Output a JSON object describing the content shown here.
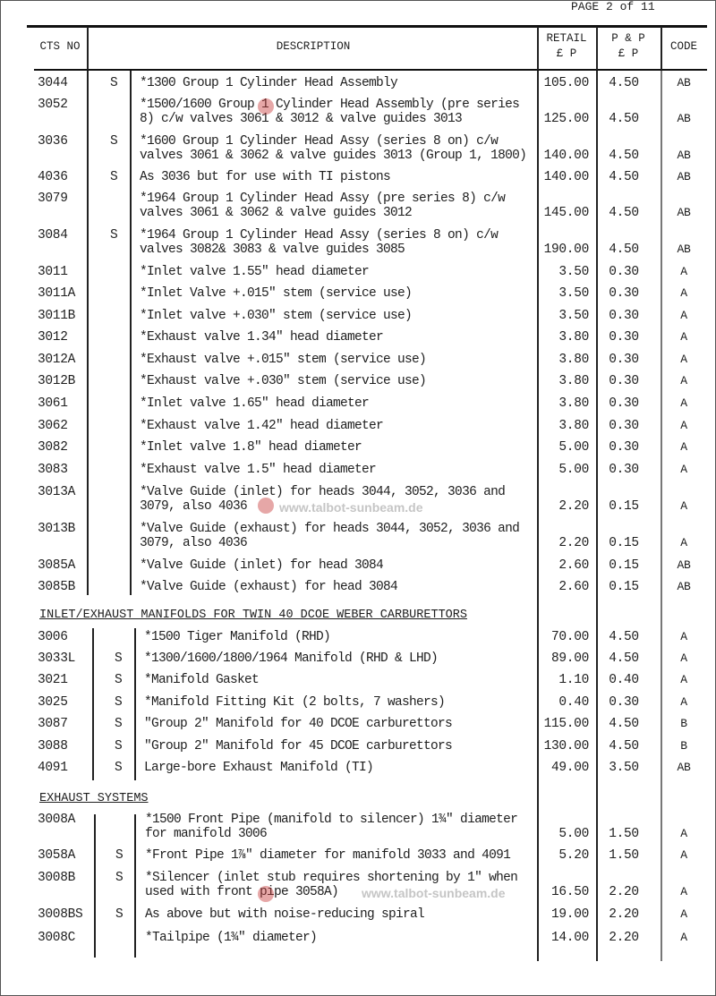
{
  "page_label": "PAGE 2 of 11",
  "header": {
    "cts_no": "CTS NO",
    "description": "DESCRIPTION",
    "retail": [
      "RETAIL",
      "£  P"
    ],
    "pp": [
      "P & P",
      "£ P"
    ],
    "code": "CODE"
  },
  "watermark": "www.talbot-sunbeam.de",
  "sections": [
    {
      "title": "",
      "rows": [
        {
          "cts": "3044",
          "s": "S",
          "desc": [
            "*1300 Group 1 Cylinder Head Assembly"
          ],
          "retail": "105.00",
          "pp": "4.50",
          "code": "AB"
        },
        {
          "cts": "3052",
          "s": "",
          "desc": [
            "*1500/1600 Group 1 Cylinder Head Assembly (pre series",
            "8) c/w valves 3061 & 3012 & valve guides 3013"
          ],
          "retail": "125.00",
          "pp": "4.50",
          "code": "AB"
        },
        {
          "cts": "3036",
          "s": "S",
          "desc": [
            "*1600 Group 1 Cylinder Head Assy (series 8 on) c/w",
            "valves 3061 & 3062 & valve guides 3013 (Group 1, 1800)"
          ],
          "retail": "140.00",
          "pp": "4.50",
          "code": "AB"
        },
        {
          "cts": "4036",
          "s": "S",
          "desc": [
            "As 3036 but for use with TI pistons"
          ],
          "retail": "140.00",
          "pp": "4.50",
          "code": "AB"
        },
        {
          "cts": "3079",
          "s": "",
          "desc": [
            "*1964 Group 1 Cylinder Head Assy (pre series 8) c/w",
            "valves 3061 & 3062 & valve guides 3012"
          ],
          "retail": "145.00",
          "pp": "4.50",
          "code": "AB"
        },
        {
          "cts": "3084",
          "s": "S",
          "desc": [
            "*1964 Group 1 Cylinder Head Assy (series 8 on) c/w",
            "valves 3082& 3083 & valve guides 3085"
          ],
          "retail": "190.00",
          "pp": "4.50",
          "code": "AB"
        },
        {
          "cts": "3011",
          "s": "",
          "desc": [
            "*Inlet valve 1.55\" head diameter"
          ],
          "retail": "3.50",
          "pp": "0.30",
          "code": "A"
        },
        {
          "cts": "3011A",
          "s": "",
          "desc": [
            "*Inlet Valve +.015\" stem (service use)"
          ],
          "retail": "3.50",
          "pp": "0.30",
          "code": "A"
        },
        {
          "cts": "3011B",
          "s": "",
          "desc": [
            "*Inlet valve +.030\" stem (service use)"
          ],
          "retail": "3.50",
          "pp": "0.30",
          "code": "A"
        },
        {
          "cts": "3012",
          "s": "",
          "desc": [
            "*Exhaust valve 1.34\" head diameter"
          ],
          "retail": "3.80",
          "pp": "0.30",
          "code": "A"
        },
        {
          "cts": "3012A",
          "s": "",
          "desc": [
            "*Exhaust valve +.015\" stem (service use)"
          ],
          "retail": "3.80",
          "pp": "0.30",
          "code": "A"
        },
        {
          "cts": "3012B",
          "s": "",
          "desc": [
            "*Exhaust valve +.030\" stem (service use)"
          ],
          "retail": "3.80",
          "pp": "0.30",
          "code": "A"
        },
        {
          "cts": "3061",
          "s": "",
          "desc": [
            "*Inlet valve 1.65\" head diameter"
          ],
          "retail": "3.80",
          "pp": "0.30",
          "code": "A"
        },
        {
          "cts": "3062",
          "s": "",
          "desc": [
            "*Exhaust valve 1.42\" head diameter"
          ],
          "retail": "3.80",
          "pp": "0.30",
          "code": "A"
        },
        {
          "cts": "3082",
          "s": "",
          "desc": [
            "*Inlet valve 1.8\" head diameter"
          ],
          "retail": "5.00",
          "pp": "0.30",
          "code": "A"
        },
        {
          "cts": "3083",
          "s": "",
          "desc": [
            "*Exhaust valve 1.5\" head diameter"
          ],
          "retail": "5.00",
          "pp": "0.30",
          "code": "A"
        },
        {
          "cts": "3013A",
          "s": "",
          "desc": [
            "*Valve Guide (inlet) for heads 3044, 3052, 3036 and",
            "3079, also 4036"
          ],
          "retail": "2.20",
          "pp": "0.15",
          "code": "A"
        },
        {
          "cts": "3013B",
          "s": "",
          "desc": [
            "*Valve Guide (exhaust) for heads 3044, 3052, 3036 and",
            "3079, also 4036"
          ],
          "retail": "2.20",
          "pp": "0.15",
          "code": "A"
        },
        {
          "cts": "3085A",
          "s": "",
          "desc": [
            "*Valve Guide (inlet) for head 3084"
          ],
          "retail": "2.60",
          "pp": "0.15",
          "code": "AB"
        },
        {
          "cts": "3085B",
          "s": "",
          "desc": [
            "*Valve Guide (exhaust) for head 3084"
          ],
          "retail": "2.60",
          "pp": "0.15",
          "code": "AB"
        }
      ]
    },
    {
      "title": "INLET/EXHAUST MANIFOLDS FOR TWIN 40 DCOE WEBER CARBURETTORS",
      "rows": [
        {
          "cts": "3006",
          "s": "",
          "desc": [
            "*1500 Tiger Manifold (RHD)"
          ],
          "retail": "70.00",
          "pp": "4.50",
          "code": "A"
        },
        {
          "cts": "3033L",
          "s": "S",
          "desc": [
            "*1300/1600/1800/1964 Manifold (RHD & LHD)"
          ],
          "retail": "89.00",
          "pp": "4.50",
          "code": "A"
        },
        {
          "cts": "3021",
          "s": "S",
          "desc": [
            "*Manifold Gasket"
          ],
          "retail": "1.10",
          "pp": "0.40",
          "code": "A"
        },
        {
          "cts": "3025",
          "s": "S",
          "desc": [
            "*Manifold Fitting Kit (2 bolts, 7 washers)"
          ],
          "retail": "0.40",
          "pp": "0.30",
          "code": "A"
        },
        {
          "cts": "3087",
          "s": "S",
          "desc": [
            "\"Group 2\" Manifold for 40 DCOE carburettors"
          ],
          "retail": "115.00",
          "pp": "4.50",
          "code": "B"
        },
        {
          "cts": "3088",
          "s": "S",
          "desc": [
            "\"Group 2\" Manifold for 45 DCOE carburettors"
          ],
          "retail": "130.00",
          "pp": "4.50",
          "code": "B"
        },
        {
          "cts": "4091",
          "s": "S",
          "desc": [
            "Large-bore Exhaust Manifold (TI)"
          ],
          "retail": "49.00",
          "pp": "3.50",
          "code": "AB"
        }
      ]
    },
    {
      "title": "EXHAUST SYSTEMS",
      "rows": [
        {
          "cts": "3008A",
          "s": "",
          "desc": [
            "*1500 Front Pipe (manifold to silencer) 1¾\" diameter",
            "for manifold 3006"
          ],
          "retail": "5.00",
          "pp": "1.50",
          "code": "A"
        },
        {
          "cts": "3058A",
          "s": "S",
          "desc": [
            "*Front Pipe 1⅞\" diameter for manifold 3033 and 4091"
          ],
          "retail": "5.20",
          "pp": "1.50",
          "code": "A"
        },
        {
          "cts": "3008B",
          "s": "S",
          "desc": [
            "*Silencer (inlet stub requires shortening by 1\" when",
            "used with front pipe 3058A)"
          ],
          "retail": "16.50",
          "pp": "2.20",
          "code": "A"
        },
        {
          "cts": "3008BS",
          "s": "S",
          "desc": [
            "As above but with noise-reducing spiral"
          ],
          "retail": "19.00",
          "pp": "2.20",
          "code": "A"
        },
        {
          "cts": "3008C",
          "s": "",
          "desc": [
            "*Tailpipe (1¾\" diameter)"
          ],
          "retail": "14.00",
          "pp": "2.20",
          "code": "A"
        }
      ]
    }
  ]
}
